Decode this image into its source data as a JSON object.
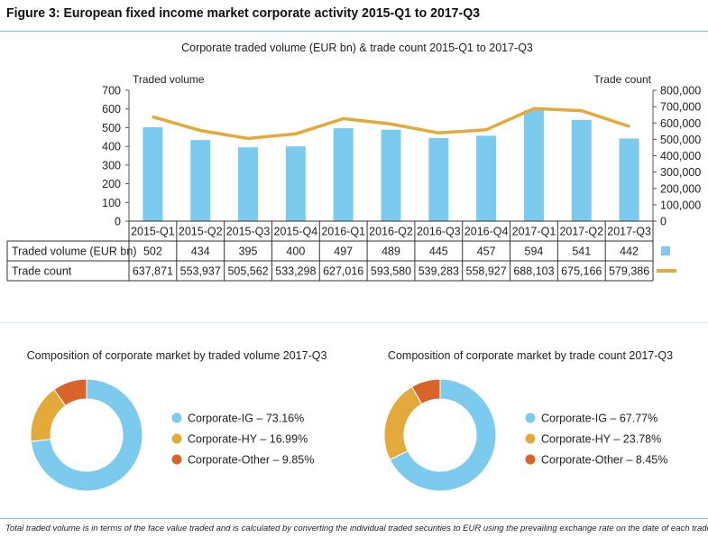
{
  "figure": {
    "title": "Figure 3: European fixed income market corporate activity 2015-Q1 to 2017-Q3",
    "footnote": "Total traded volume is in terms of the face value traded and is calculated by converting the individual traded securities to EUR using the prevailing exchange rate on the date of each trade"
  },
  "colors": {
    "bar": "#7ccbee",
    "line": "#e3a93a",
    "ig": "#7ccbee",
    "hy": "#e3a93a",
    "other": "#d9642a",
    "rule": "#6dc3e8"
  },
  "chart_data": [
    {
      "type": "bar+line",
      "title": "Corporate traded volume (EUR bn) & trade count 2015-Q1 to 2017-Q3",
      "ylabel": "Traded volume",
      "y2label": "Trade count",
      "ylim": [
        0,
        700
      ],
      "y2lim": [
        0,
        800000
      ],
      "yticks": [
        "700",
        "600",
        "500",
        "400",
        "300",
        "200",
        "100",
        "0"
      ],
      "y2ticks": [
        "800,000",
        "700,000",
        "600,000",
        "500,000",
        "400,000",
        "300,000",
        "200,000",
        "100,000",
        "0"
      ],
      "grid": false,
      "categories": [
        "2015-Q1",
        "2015-Q2",
        "2015-Q3",
        "2015-Q4",
        "2016-Q1",
        "2016-Q2",
        "2016-Q3",
        "2016-Q4",
        "2017-Q1",
        "2017-Q2",
        "2017-Q3"
      ],
      "series": [
        {
          "name": "Traded volume (EUR bn)",
          "kind": "bar",
          "axis": "left",
          "values": [
            502,
            434,
            395,
            400,
            497,
            489,
            445,
            457,
            594,
            541,
            442
          ],
          "labels": [
            "502",
            "434",
            "395",
            "400",
            "497",
            "489",
            "445",
            "457",
            "594",
            "541",
            "442"
          ]
        },
        {
          "name": "Trade count",
          "kind": "line",
          "axis": "right",
          "values": [
            637871,
            553937,
            505562,
            533298,
            627016,
            593580,
            539283,
            558927,
            688103,
            675166,
            579386
          ],
          "labels": [
            "637,871",
            "553,937",
            "505,562",
            "533,298",
            "627,016",
            "593,580",
            "539,283",
            "558,927",
            "688,103",
            "675,166",
            "579,386"
          ]
        }
      ]
    },
    {
      "type": "pie",
      "title": "Composition of corporate market by traded volume 2017-Q3",
      "slices": [
        {
          "name": "Corporate-IG",
          "value": 73.16,
          "label": "Corporate-IG – 73.16%"
        },
        {
          "name": "Corporate-HY",
          "value": 16.99,
          "label": "Corporate-HY – 16.99%"
        },
        {
          "name": "Corporate-Other",
          "value": 9.85,
          "label": "Corporate-Other – 9.85%"
        }
      ]
    },
    {
      "type": "pie",
      "title": "Composition of corporate market by trade count 2017-Q3",
      "slices": [
        {
          "name": "Corporate-IG",
          "value": 67.77,
          "label": "Corporate-IG – 67.77%"
        },
        {
          "name": "Corporate-HY",
          "value": 23.78,
          "label": "Corporate-HY – 23.78%"
        },
        {
          "name": "Corporate-Other",
          "value": 8.45,
          "label": "Corporate-Other – 8.45%"
        }
      ]
    }
  ]
}
